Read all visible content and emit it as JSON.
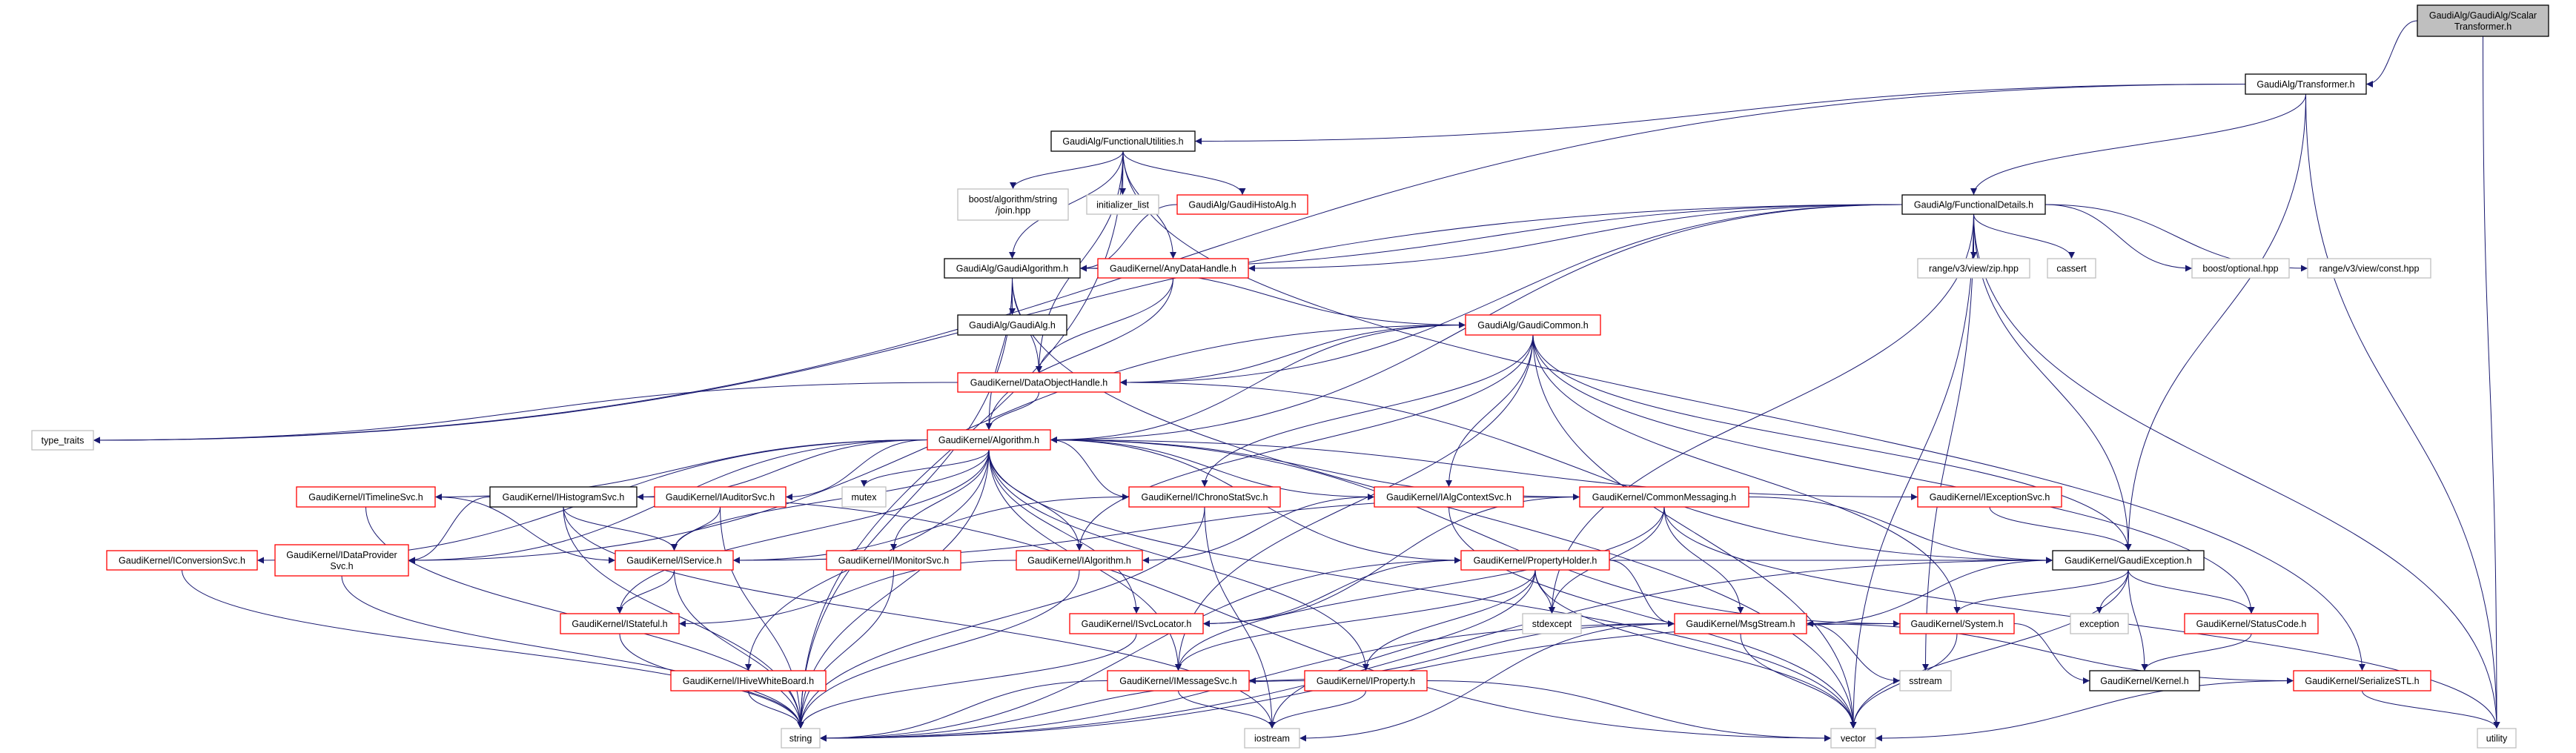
{
  "colors": {
    "edge": "#191970",
    "current_fill": "#bfbfbf",
    "documented_border": "#000000",
    "undocumented_border": "#ff0000",
    "external_border": "#bfbfbf"
  },
  "nodes": [
    {
      "id": "scalar",
      "lines": [
        "GaudiAlg/GaudiAlg/Scalar",
        "Transformer.h"
      ],
      "kind": "current"
    },
    {
      "id": "transformer",
      "lines": [
        "GaudiAlg/Transformer.h"
      ],
      "kind": "documented"
    },
    {
      "id": "funcutil",
      "lines": [
        "GaudiAlg/FunctionalUtilities.h"
      ],
      "kind": "documented"
    },
    {
      "id": "boostjoin",
      "lines": [
        "boost/algorithm/string",
        "/join.hpp"
      ],
      "kind": "external"
    },
    {
      "id": "initlist",
      "lines": [
        "initializer_list"
      ],
      "kind": "external"
    },
    {
      "id": "histoalg",
      "lines": [
        "GaudiAlg/GaudiHistoAlg.h"
      ],
      "kind": "undocumented"
    },
    {
      "id": "funcdetails",
      "lines": [
        "GaudiAlg/FunctionalDetails.h"
      ],
      "kind": "documented"
    },
    {
      "id": "zip",
      "lines": [
        "range/v3/view/zip.hpp"
      ],
      "kind": "external"
    },
    {
      "id": "cassert",
      "lines": [
        "cassert"
      ],
      "kind": "external"
    },
    {
      "id": "optional",
      "lines": [
        "boost/optional.hpp"
      ],
      "kind": "external"
    },
    {
      "id": "constv",
      "lines": [
        "range/v3/view/const.hpp"
      ],
      "kind": "external"
    },
    {
      "id": "gaudialgorithm",
      "lines": [
        "GaudiAlg/GaudiAlgorithm.h"
      ],
      "kind": "documented"
    },
    {
      "id": "anydatahandle",
      "lines": [
        "GaudiKernel/AnyDataHandle.h"
      ],
      "kind": "undocumented"
    },
    {
      "id": "gaudialg",
      "lines": [
        "GaudiAlg/GaudiAlg.h"
      ],
      "kind": "documented"
    },
    {
      "id": "gaudicommon",
      "lines": [
        "GaudiAlg/GaudiCommon.h"
      ],
      "kind": "undocumented"
    },
    {
      "id": "dataobjhandle",
      "lines": [
        "GaudiKernel/DataObjectHandle.h"
      ],
      "kind": "undocumented"
    },
    {
      "id": "typetraits",
      "lines": [
        "type_traits"
      ],
      "kind": "external"
    },
    {
      "id": "algorithm",
      "lines": [
        "GaudiKernel/Algorithm.h"
      ],
      "kind": "undocumented"
    },
    {
      "id": "timeline",
      "lines": [
        "GaudiKernel/ITimelineSvc.h"
      ],
      "kind": "undocumented"
    },
    {
      "id": "histosvc",
      "lines": [
        "GaudiKernel/IHistogramSvc.h"
      ],
      "kind": "documented"
    },
    {
      "id": "auditorsvc",
      "lines": [
        "GaudiKernel/IAuditorSvc.h"
      ],
      "kind": "undocumented"
    },
    {
      "id": "mutex",
      "lines": [
        "mutex"
      ],
      "kind": "external"
    },
    {
      "id": "chronostat",
      "lines": [
        "GaudiKernel/IChronoStatSvc.h"
      ],
      "kind": "undocumented"
    },
    {
      "id": "algcontext",
      "lines": [
        "GaudiKernel/IAlgContextSvc.h"
      ],
      "kind": "undocumented"
    },
    {
      "id": "commonmsg",
      "lines": [
        "GaudiKernel/CommonMessaging.h"
      ],
      "kind": "undocumented"
    },
    {
      "id": "exceptionsvc",
      "lines": [
        "GaudiKernel/IExceptionSvc.h"
      ],
      "kind": "undocumented"
    },
    {
      "id": "conversionsvc",
      "lines": [
        "GaudiKernel/IConversionSvc.h"
      ],
      "kind": "undocumented"
    },
    {
      "id": "dataprovider",
      "lines": [
        "GaudiKernel/IDataProvider",
        "Svc.h"
      ],
      "kind": "undocumented"
    },
    {
      "id": "iservice",
      "lines": [
        "GaudiKernel/IService.h"
      ],
      "kind": "undocumented"
    },
    {
      "id": "monitorsvc",
      "lines": [
        "GaudiKernel/IMonitorSvc.h"
      ],
      "kind": "undocumented"
    },
    {
      "id": "ialgorithm",
      "lines": [
        "GaudiKernel/IAlgorithm.h"
      ],
      "kind": "undocumented"
    },
    {
      "id": "propholder",
      "lines": [
        "GaudiKernel/PropertyHolder.h"
      ],
      "kind": "undocumented"
    },
    {
      "id": "gaudiexception",
      "lines": [
        "GaudiKernel/GaudiException.h"
      ],
      "kind": "documented"
    },
    {
      "id": "istateful",
      "lines": [
        "GaudiKernel/IStateful.h"
      ],
      "kind": "undocumented"
    },
    {
      "id": "svclocator",
      "lines": [
        "GaudiKernel/ISvcLocator.h"
      ],
      "kind": "undocumented"
    },
    {
      "id": "stdexcept",
      "lines": [
        "stdexcept"
      ],
      "kind": "external"
    },
    {
      "id": "msgstream",
      "lines": [
        "GaudiKernel/MsgStream.h"
      ],
      "kind": "undocumented"
    },
    {
      "id": "system",
      "lines": [
        "GaudiKernel/System.h"
      ],
      "kind": "undocumented"
    },
    {
      "id": "exception",
      "lines": [
        "exception"
      ],
      "kind": "external"
    },
    {
      "id": "statuscode",
      "lines": [
        "GaudiKernel/StatusCode.h"
      ],
      "kind": "undocumented"
    },
    {
      "id": "hivewb",
      "lines": [
        "GaudiKernel/IHiveWhiteBoard.h"
      ],
      "kind": "undocumented"
    },
    {
      "id": "messagesvc",
      "lines": [
        "GaudiKernel/IMessageSvc.h"
      ],
      "kind": "undocumented"
    },
    {
      "id": "iproperty",
      "lines": [
        "GaudiKernel/IProperty.h"
      ],
      "kind": "undocumented"
    },
    {
      "id": "sstream",
      "lines": [
        "sstream"
      ],
      "kind": "external"
    },
    {
      "id": "kernel",
      "lines": [
        "GaudiKernel/Kernel.h"
      ],
      "kind": "documented"
    },
    {
      "id": "serializestl",
      "lines": [
        "GaudiKernel/SerializeSTL.h"
      ],
      "kind": "undocumented"
    },
    {
      "id": "string",
      "lines": [
        "string"
      ],
      "kind": "external"
    },
    {
      "id": "iostream",
      "lines": [
        "iostream"
      ],
      "kind": "external"
    },
    {
      "id": "vector",
      "lines": [
        "vector"
      ],
      "kind": "external"
    },
    {
      "id": "utility",
      "lines": [
        "utility"
      ],
      "kind": "external"
    }
  ],
  "edges": [
    [
      "scalar",
      "transformer"
    ],
    [
      "scalar",
      "utility"
    ],
    [
      "transformer",
      "funcutil"
    ],
    [
      "transformer",
      "funcdetails"
    ],
    [
      "transformer",
      "typetraits"
    ],
    [
      "transformer",
      "utility"
    ],
    [
      "transformer",
      "gaudiexception"
    ],
    [
      "funcutil",
      "boostjoin"
    ],
    [
      "funcutil",
      "initlist"
    ],
    [
      "funcutil",
      "histoalg"
    ],
    [
      "funcutil",
      "gaudialgorithm"
    ],
    [
      "funcutil",
      "anydatahandle"
    ],
    [
      "funcutil",
      "dataobjhandle"
    ],
    [
      "funcutil",
      "string"
    ],
    [
      "funcutil",
      "serializestl"
    ],
    [
      "funcdetails",
      "zip"
    ],
    [
      "funcdetails",
      "cassert"
    ],
    [
      "funcdetails",
      "optional"
    ],
    [
      "funcdetails",
      "constv"
    ],
    [
      "funcdetails",
      "gaudialgorithm"
    ],
    [
      "funcdetails",
      "anydatahandle"
    ],
    [
      "funcdetails",
      "dataobjhandle"
    ],
    [
      "funcdetails",
      "algorithm"
    ],
    [
      "funcdetails",
      "typetraits"
    ],
    [
      "funcdetails",
      "gaudiexception"
    ],
    [
      "funcdetails",
      "stdexcept"
    ],
    [
      "funcdetails",
      "vector"
    ],
    [
      "funcdetails",
      "utility"
    ],
    [
      "funcdetails",
      "sstream"
    ],
    [
      "histoalg",
      "gaudialgorithm"
    ],
    [
      "gaudialgorithm",
      "gaudialg"
    ],
    [
      "gaudialgorithm",
      "gaudicommon"
    ],
    [
      "gaudialgorithm",
      "algorithm"
    ],
    [
      "gaudialgorithm",
      "dataobjhandle"
    ],
    [
      "gaudialgorithm",
      "string"
    ],
    [
      "gaudialgorithm",
      "vector"
    ],
    [
      "anydatahandle",
      "dataobjhandle"
    ],
    [
      "anydatahandle",
      "algorithm"
    ],
    [
      "gaudicommon",
      "dataobjhandle"
    ],
    [
      "gaudicommon",
      "algorithm"
    ],
    [
      "gaudicommon",
      "ialgorithm"
    ],
    [
      "gaudicommon",
      "chronostat"
    ],
    [
      "gaudicommon",
      "algcontext"
    ],
    [
      "gaudicommon",
      "dataprovider"
    ],
    [
      "gaudicommon",
      "messagesvc"
    ],
    [
      "gaudicommon",
      "gaudiexception"
    ],
    [
      "gaudicommon",
      "system"
    ],
    [
      "gaudicommon",
      "statuscode"
    ],
    [
      "gaudicommon",
      "vector"
    ],
    [
      "dataobjhandle",
      "algorithm"
    ],
    [
      "dataobjhandle",
      "typetraits"
    ],
    [
      "dataobjhandle",
      "gaudiexception"
    ],
    [
      "algorithm",
      "string"
    ],
    [
      "algorithm",
      "vector"
    ],
    [
      "algorithm",
      "timeline"
    ],
    [
      "algorithm",
      "histosvc"
    ],
    [
      "algorithm",
      "auditorsvc"
    ],
    [
      "algorithm",
      "mutex"
    ],
    [
      "algorithm",
      "chronostat"
    ],
    [
      "algorithm",
      "algcontext"
    ],
    [
      "algorithm",
      "commonmsg"
    ],
    [
      "algorithm",
      "exceptionsvc"
    ],
    [
      "algorithm",
      "conversionsvc"
    ],
    [
      "algorithm",
      "dataprovider"
    ],
    [
      "algorithm",
      "iservice"
    ],
    [
      "algorithm",
      "istateful"
    ],
    [
      "algorithm",
      "monitorsvc"
    ],
    [
      "algorithm",
      "ialgorithm"
    ],
    [
      "algorithm",
      "hivewb"
    ],
    [
      "algorithm",
      "svclocator"
    ],
    [
      "algorithm",
      "messagesvc"
    ],
    [
      "algorithm",
      "iproperty"
    ],
    [
      "algorithm",
      "propholder"
    ],
    [
      "algorithm",
      "system"
    ],
    [
      "timeline",
      "iservice"
    ],
    [
      "timeline",
      "string"
    ],
    [
      "histosvc",
      "dataprovider"
    ],
    [
      "histosvc",
      "iservice"
    ],
    [
      "histosvc",
      "string"
    ],
    [
      "histosvc",
      "iostream"
    ],
    [
      "histosvc",
      "vector"
    ],
    [
      "auditorsvc",
      "iservice"
    ],
    [
      "auditorsvc",
      "string"
    ],
    [
      "conversionsvc",
      "string"
    ],
    [
      "dataprovider",
      "string"
    ],
    [
      "iservice",
      "istateful"
    ],
    [
      "iservice",
      "string"
    ],
    [
      "istateful",
      "string"
    ],
    [
      "hivewb",
      "string"
    ],
    [
      "monitorsvc",
      "string"
    ],
    [
      "ialgorithm",
      "string"
    ],
    [
      "ialgorithm",
      "istateful"
    ],
    [
      "chronostat",
      "iservice"
    ],
    [
      "chronostat",
      "string"
    ],
    [
      "chronostat",
      "iostream"
    ],
    [
      "algcontext",
      "ialgorithm"
    ],
    [
      "algcontext",
      "vector"
    ],
    [
      "commonmsg",
      "iservice"
    ],
    [
      "commonmsg",
      "svclocator"
    ],
    [
      "commonmsg",
      "messagesvc"
    ],
    [
      "commonmsg",
      "msgstream"
    ],
    [
      "commonmsg",
      "gaudiexception"
    ],
    [
      "commonmsg",
      "stdexcept"
    ],
    [
      "commonmsg",
      "utility"
    ],
    [
      "exceptionsvc",
      "gaudiexception"
    ],
    [
      "propholder",
      "svclocator"
    ],
    [
      "propholder",
      "messagesvc"
    ],
    [
      "propholder",
      "iproperty"
    ],
    [
      "propholder",
      "stdexcept"
    ],
    [
      "propholder",
      "msgstream"
    ],
    [
      "propholder",
      "gaudiexception"
    ],
    [
      "propholder",
      "vector"
    ],
    [
      "propholder",
      "iostream"
    ],
    [
      "propholder",
      "string"
    ],
    [
      "svclocator",
      "string"
    ],
    [
      "messagesvc",
      "string"
    ],
    [
      "messagesvc",
      "iostream"
    ],
    [
      "iproperty",
      "string"
    ],
    [
      "iproperty",
      "iostream"
    ],
    [
      "iproperty",
      "vector"
    ],
    [
      "gaudiexception",
      "msgstream"
    ],
    [
      "gaudiexception",
      "system"
    ],
    [
      "gaudiexception",
      "exception"
    ],
    [
      "gaudiexception",
      "statuscode"
    ],
    [
      "gaudiexception",
      "kernel"
    ],
    [
      "gaudiexception",
      "string"
    ],
    [
      "gaudiexception",
      "vector"
    ],
    [
      "msgstream",
      "messagesvc"
    ],
    [
      "msgstream",
      "sstream"
    ],
    [
      "msgstream",
      "vector"
    ],
    [
      "msgstream",
      "iostream"
    ],
    [
      "msgstream",
      "string"
    ],
    [
      "msgstream",
      "serializestl"
    ],
    [
      "system",
      "kernel"
    ],
    [
      "system",
      "vector"
    ],
    [
      "system",
      "string"
    ],
    [
      "statuscode",
      "kernel"
    ],
    [
      "serializestl",
      "vector"
    ],
    [
      "serializestl",
      "utility"
    ]
  ]
}
